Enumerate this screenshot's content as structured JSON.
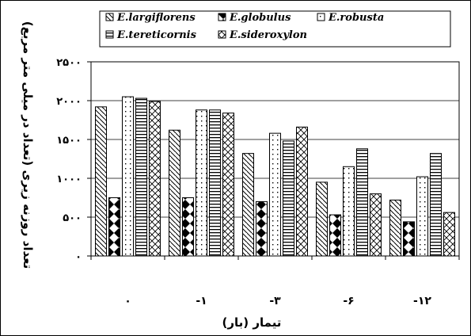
{
  "chart_data": {
    "type": "bar",
    "xlabel": "تیمار (بار)",
    "ylabel": "تعداد روزنه زیری (تعداد در میلی متر مربع)",
    "categories": [
      "۰",
      "-۱",
      "-۳",
      "-۶",
      "-۱۲"
    ],
    "ylim": [
      0,
      2500
    ],
    "yticks": [
      0,
      500,
      1000,
      1500,
      2000,
      2500
    ],
    "ytick_labels": [
      "۰",
      "۵۰۰",
      "۱۰۰۰",
      "۱۵۰۰",
      "۲۰۰۰",
      "۲۵۰۰"
    ],
    "grid": "horizontal",
    "legend_position": "top",
    "series": [
      {
        "name": "E.largiflorens",
        "values": [
          1920,
          1620,
          1320,
          950,
          720
        ],
        "pattern": "diag-down"
      },
      {
        "name": "E.globulus",
        "values": [
          750,
          750,
          700,
          530,
          440
        ],
        "pattern": "diamond"
      },
      {
        "name": "E.robusta",
        "values": [
          2050,
          1880,
          1580,
          1150,
          1020
        ],
        "pattern": "dots"
      },
      {
        "name": "E.tereticornis",
        "values": [
          2030,
          1880,
          1480,
          1380,
          1320
        ],
        "pattern": "hlines"
      },
      {
        "name": "E.sideroxylon",
        "values": [
          1990,
          1840,
          1660,
          800,
          560
        ],
        "pattern": "cross"
      }
    ]
  }
}
